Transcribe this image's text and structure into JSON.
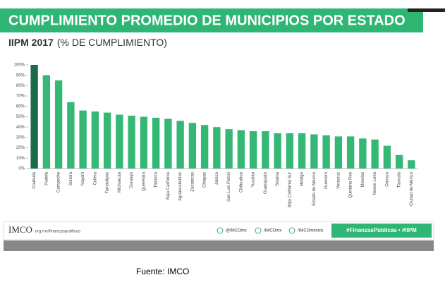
{
  "header": {
    "title": "CUMPLIMIENTO PROMEDIO DE MUNICIPIOS POR ESTADO",
    "subtitle_bold": "IIPM 2017",
    "subtitle": "(% DE CUMPLIMIENTO)"
  },
  "chart_data": {
    "type": "bar",
    "categories": [
      "Coahuila",
      "Puebla",
      "Campeche",
      "Sonora",
      "Nayarit",
      "Colima",
      "Tamaulipas",
      "Michoacán",
      "Durango",
      "Querétaro",
      "Tabasco",
      "Baja California",
      "Aguascalientes",
      "Zacatecas",
      "Chiapas",
      "Jalisco",
      "San Luis Potosí",
      "Chihuahua",
      "Yucatán",
      "Guanajuato",
      "Sinaloa",
      "Baja California Sur",
      "Hidalgo",
      "Estado de México",
      "Guerrero",
      "Veracruz",
      "Quintana Roo",
      "Morelos",
      "Nuevo León",
      "Oaxaca",
      "Tlaxcala",
      "Ciudad de México"
    ],
    "values": [
      100,
      90,
      85,
      64,
      56,
      55,
      54,
      52,
      51,
      50,
      49,
      48,
      46,
      44,
      42,
      40,
      38,
      37,
      36,
      36,
      34,
      34,
      34,
      33,
      32,
      31,
      31,
      29,
      28,
      22,
      13,
      8
    ],
    "colors": [
      "#1c6b4b",
      "#35b776",
      "#35b776",
      "#35b776",
      "#35b776",
      "#35b776",
      "#35b776",
      "#35b776",
      "#35b776",
      "#35b776",
      "#35b776",
      "#35b776",
      "#35b776",
      "#35b776",
      "#35b776",
      "#35b776",
      "#35b776",
      "#35b776",
      "#35b776",
      "#35b776",
      "#35b776",
      "#35b776",
      "#35b776",
      "#35b776",
      "#35b776",
      "#35b776",
      "#35b776",
      "#35b776",
      "#35b776",
      "#35b776",
      "#35b776",
      "#35b776"
    ],
    "ylim": [
      0,
      100
    ],
    "yticks": [
      {
        "value": 0,
        "label": "0%"
      },
      {
        "value": 10,
        "label": "10%"
      },
      {
        "value": 20,
        "label": "20%"
      },
      {
        "value": 30,
        "label": "30%"
      },
      {
        "value": 40,
        "label": "40%"
      },
      {
        "value": 50,
        "label": "50%"
      },
      {
        "value": 60,
        "label": "60%"
      },
      {
        "value": 70,
        "label": "70%"
      },
      {
        "value": 80,
        "label": "80%"
      },
      {
        "value": 90,
        "label": "90%"
      },
      {
        "value": 100,
        "label": "100%"
      }
    ]
  },
  "footer": {
    "logo": "IMCO",
    "url": ".org.mx/finanzaspublicas",
    "twitter": "@IMCOmx",
    "facebook": "/IMCOmx",
    "instagram": "/IMCOmexico",
    "hashtags": "#FinanzasPúblicas • #IIPM"
  },
  "source": "Fuente: IMCO"
}
